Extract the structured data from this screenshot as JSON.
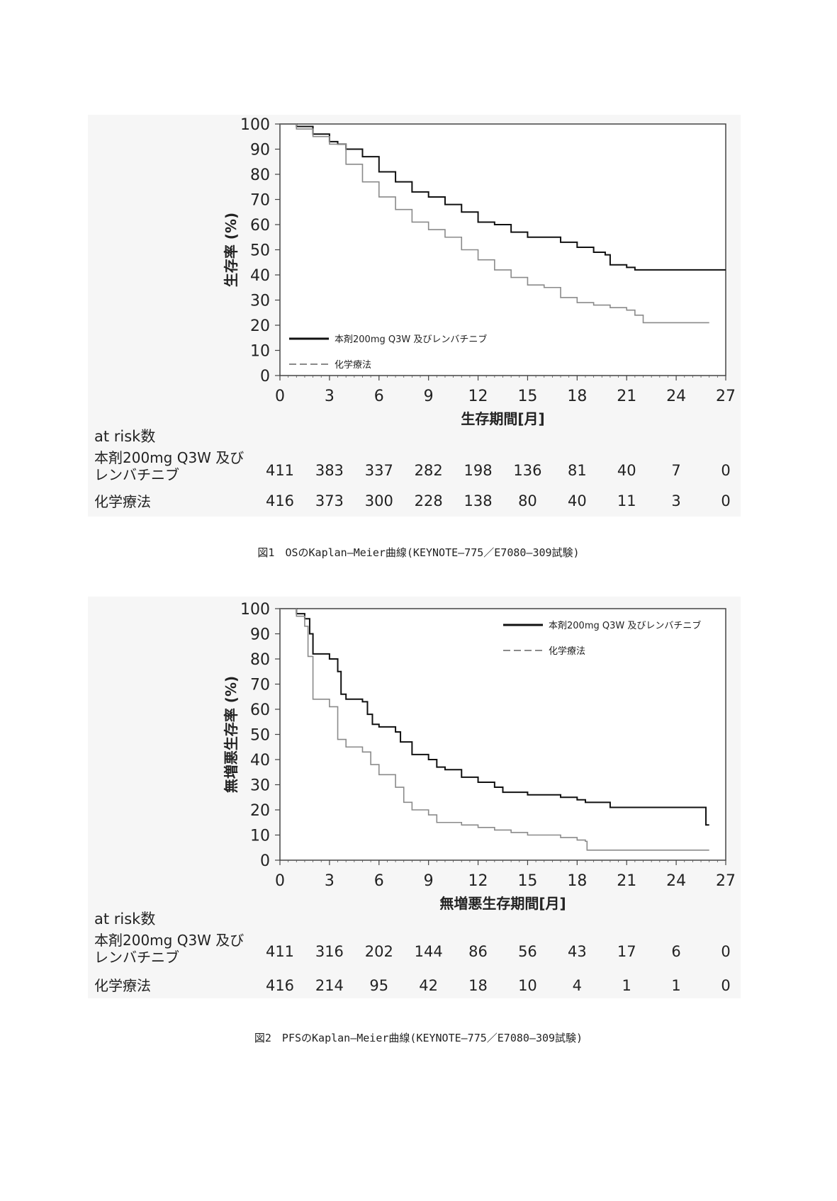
{
  "colors": {
    "treatment": "#111111",
    "chemo": "#8a8a8a",
    "panel": "#f6f6f6"
  },
  "chart_data": [
    {
      "type": "line",
      "subtype": "kaplan-meier",
      "ylabel": "生存率 (%)",
      "xlabel": "生存期間[月]",
      "xlim": [
        0,
        27
      ],
      "ylim": [
        0,
        100
      ],
      "xticks": [
        0,
        3,
        6,
        9,
        12,
        15,
        18,
        21,
        24,
        27
      ],
      "yticks": [
        0,
        10,
        20,
        30,
        40,
        50,
        60,
        70,
        80,
        90,
        100
      ],
      "grid": false,
      "legend_placement": "bottom-left",
      "series": [
        {
          "name": "本剤200mg Q3W 及びレンバチニブ",
          "style": "solid",
          "x": [
            0,
            1,
            2,
            3,
            3.5,
            4,
            5,
            6,
            7,
            8,
            9,
            10,
            11,
            12,
            13,
            14,
            15,
            16,
            17,
            18,
            19,
            19.7,
            20,
            21,
            21.5,
            27
          ],
          "y": [
            100,
            99,
            96,
            93,
            92,
            90,
            87,
            81,
            77,
            73,
            71,
            68,
            65,
            61,
            60,
            57,
            55,
            55,
            53,
            51,
            49,
            48,
            44,
            43,
            42,
            42
          ]
        },
        {
          "name": "化学療法",
          "style": "dashed",
          "x": [
            0,
            1,
            2,
            3,
            4,
            5,
            6,
            7,
            8,
            9,
            10,
            11,
            12,
            13,
            14,
            15,
            16,
            17,
            18,
            19,
            20,
            21,
            21.5,
            22,
            26
          ],
          "y": [
            100,
            98,
            95,
            92,
            84,
            77,
            71,
            66,
            61,
            58,
            55,
            50,
            46,
            42,
            39,
            36,
            35,
            31,
            29,
            28,
            27,
            26,
            24,
            21,
            21
          ]
        }
      ],
      "at_risk": {
        "title": "at risk数",
        "rows": [
          {
            "label_line1": "本剤200mg Q3W 及び",
            "label_line2": "レンバチニブ",
            "values": [
              "411",
              "383",
              "337",
              "282",
              "198",
              "136",
              "81",
              "40",
              "7",
              "0"
            ]
          },
          {
            "label_line1": "化学療法",
            "label_line2": "",
            "values": [
              "416",
              "373",
              "300",
              "228",
              "138",
              "80",
              "40",
              "11",
              "3",
              "0"
            ]
          }
        ]
      },
      "caption": "図1　OSのKaplan―Meier曲線(KEYNOTE―775／E7080―309試験)"
    },
    {
      "type": "line",
      "subtype": "kaplan-meier",
      "ylabel": "無増悪生存率 (%)",
      "xlabel": "無増悪生存期間[月]",
      "xlim": [
        0,
        27
      ],
      "ylim": [
        0,
        100
      ],
      "xticks": [
        0,
        3,
        6,
        9,
        12,
        15,
        18,
        21,
        24,
        27
      ],
      "yticks": [
        0,
        10,
        20,
        30,
        40,
        50,
        60,
        70,
        80,
        90,
        100
      ],
      "grid": false,
      "legend_placement": "top-right",
      "series": [
        {
          "name": "本剤200mg Q3W 及びレンバチニブ",
          "style": "solid",
          "x": [
            0,
            1,
            1.5,
            1.8,
            2,
            3,
            3.5,
            3.7,
            4,
            5,
            5.3,
            5.6,
            6,
            7,
            7.3,
            8,
            9,
            9.5,
            10,
            11,
            12,
            13,
            13.5,
            15,
            17,
            18,
            18.5,
            20,
            25.7,
            25.8,
            26
          ],
          "y": [
            100,
            98,
            96,
            90,
            82,
            80,
            75,
            66,
            64,
            63,
            58,
            54,
            53,
            51,
            47,
            42,
            40,
            37,
            36,
            33,
            31,
            29,
            27,
            26,
            25,
            24,
            23,
            21,
            21,
            14,
            14
          ]
        },
        {
          "name": "化学療法",
          "style": "dashed",
          "x": [
            0,
            1,
            1.5,
            1.7,
            2,
            3,
            3.5,
            4,
            5,
            5.5,
            6,
            7,
            7.5,
            8,
            9,
            9.5,
            11,
            12,
            13,
            14,
            15,
            16,
            17,
            18,
            18.5,
            18.6,
            26
          ],
          "y": [
            100,
            97,
            93,
            81,
            64,
            61,
            48,
            45,
            43,
            38,
            34,
            29,
            23,
            20,
            18,
            15,
            14,
            13,
            12,
            11,
            10,
            10,
            9,
            8,
            7.5,
            4,
            4
          ]
        }
      ],
      "at_risk": {
        "title": "at risk数",
        "rows": [
          {
            "label_line1": "本剤200mg Q3W 及び",
            "label_line2": "レンバチニブ",
            "values": [
              "411",
              "316",
              "202",
              "144",
              "86",
              "56",
              "43",
              "17",
              "6",
              "0"
            ]
          },
          {
            "label_line1": "化学療法",
            "label_line2": "",
            "values": [
              "416",
              "214",
              "95",
              "42",
              "18",
              "10",
              "4",
              "1",
              "1",
              "0"
            ]
          }
        ]
      },
      "caption": "図2　PFSのKaplan―Meier曲線(KEYNOTE―775／E7080―309試験)"
    }
  ]
}
